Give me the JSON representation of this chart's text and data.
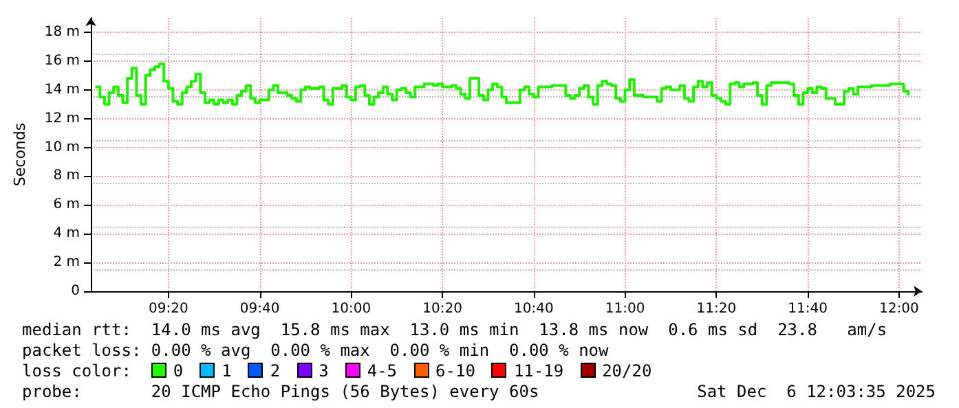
{
  "chart_data": {
    "type": "step",
    "ylabel": "Seconds",
    "grid": true,
    "marker": "none",
    "xlim": [
      "2025-12-06T09:03",
      "2025-12-06T12:05"
    ],
    "xticks": [
      {
        "value": "2025-12-06T09:20",
        "label": "09:20"
      },
      {
        "value": "2025-12-06T09:40",
        "label": "09:40"
      },
      {
        "value": "2025-12-06T10:00",
        "label": "10:00"
      },
      {
        "value": "2025-12-06T10:20",
        "label": "10:20"
      },
      {
        "value": "2025-12-06T10:40",
        "label": "10:40"
      },
      {
        "value": "2025-12-06T11:00",
        "label": "11:00"
      },
      {
        "value": "2025-12-06T11:20",
        "label": "11:20"
      },
      {
        "value": "2025-12-06T11:40",
        "label": "11:40"
      },
      {
        "value": "2025-12-06T12:00",
        "label": "12:00"
      }
    ],
    "ylim": [
      0,
      19
    ],
    "yticks": [
      0,
      {
        "value": 2,
        "label": "2 m"
      },
      {
        "value": 4,
        "label": "4 m"
      },
      {
        "value": 6,
        "label": "6 m"
      },
      {
        "value": 8,
        "label": "8 m"
      },
      {
        "value": 10,
        "label": "10 m"
      },
      {
        "value": 12,
        "label": "12 m"
      },
      {
        "value": 14,
        "label": "14 m"
      },
      {
        "value": 16,
        "label": "16 m"
      },
      {
        "value": 18,
        "label": "18 m"
      }
    ],
    "x": [
      "2025-12-06T09:04",
      "2025-12-06T09:05",
      "2025-12-06T09:06",
      "2025-12-06T09:07",
      "2025-12-06T09:08",
      "2025-12-06T09:09",
      "2025-12-06T09:10",
      "2025-12-06T09:11",
      "2025-12-06T09:12",
      "2025-12-06T09:13",
      "2025-12-06T09:14",
      "2025-12-06T09:15",
      "2025-12-06T09:16",
      "2025-12-06T09:17",
      "2025-12-06T09:18",
      "2025-12-06T09:19",
      "2025-12-06T09:20",
      "2025-12-06T09:21",
      "2025-12-06T09:22",
      "2025-12-06T09:23",
      "2025-12-06T09:24",
      "2025-12-06T09:25",
      "2025-12-06T09:26",
      "2025-12-06T09:27",
      "2025-12-06T09:28",
      "2025-12-06T09:29",
      "2025-12-06T09:30",
      "2025-12-06T09:31",
      "2025-12-06T09:32",
      "2025-12-06T09:33",
      "2025-12-06T09:34",
      "2025-12-06T09:35",
      "2025-12-06T09:36",
      "2025-12-06T09:37",
      "2025-12-06T09:38",
      "2025-12-06T09:39",
      "2025-12-06T09:40",
      "2025-12-06T09:42",
      "2025-12-06T09:43",
      "2025-12-06T09:44",
      "2025-12-06T09:46",
      "2025-12-06T09:47",
      "2025-12-06T09:48",
      "2025-12-06T09:49",
      "2025-12-06T09:50",
      "2025-12-06T09:51",
      "2025-12-06T09:53",
      "2025-12-06T09:54",
      "2025-12-06T09:55",
      "2025-12-06T09:56",
      "2025-12-06T09:58",
      "2025-12-06T09:59",
      "2025-12-06T10:00",
      "2025-12-06T10:01",
      "2025-12-06T10:02",
      "2025-12-06T10:03",
      "2025-12-06T10:04",
      "2025-12-06T10:05",
      "2025-12-06T10:06",
      "2025-12-06T10:07",
      "2025-12-06T10:08",
      "2025-12-06T10:09",
      "2025-12-06T10:10",
      "2025-12-06T10:11",
      "2025-12-06T10:12",
      "2025-12-06T10:13",
      "2025-12-06T10:14",
      "2025-12-06T10:16",
      "2025-12-06T10:18",
      "2025-12-06T10:19",
      "2025-12-06T10:20",
      "2025-12-06T10:22",
      "2025-12-06T10:23",
      "2025-12-06T10:24",
      "2025-12-06T10:25",
      "2025-12-06T10:26",
      "2025-12-06T10:28",
      "2025-12-06T10:29",
      "2025-12-06T10:30",
      "2025-12-06T10:31",
      "2025-12-06T10:32",
      "2025-12-06T10:33",
      "2025-12-06T10:34",
      "2025-12-06T10:36",
      "2025-12-06T10:37",
      "2025-12-06T10:38",
      "2025-12-06T10:39",
      "2025-12-06T10:40",
      "2025-12-06T10:41",
      "2025-12-06T10:44",
      "2025-12-06T10:46",
      "2025-12-06T10:47",
      "2025-12-06T10:48",
      "2025-12-06T10:49",
      "2025-12-06T10:50",
      "2025-12-06T10:51",
      "2025-12-06T10:52",
      "2025-12-06T10:53",
      "2025-12-06T10:54",
      "2025-12-06T10:55",
      "2025-12-06T10:56",
      "2025-12-06T10:57",
      "2025-12-06T10:58",
      "2025-12-06T10:59",
      "2025-12-06T11:00",
      "2025-12-06T11:01",
      "2025-12-06T11:02",
      "2025-12-06T11:04",
      "2025-12-06T11:06",
      "2025-12-06T11:07",
      "2025-12-06T11:08",
      "2025-12-06T11:09",
      "2025-12-06T11:10",
      "2025-12-06T11:12",
      "2025-12-06T11:13",
      "2025-12-06T11:14",
      "2025-12-06T11:15",
      "2025-12-06T11:16",
      "2025-12-06T11:17",
      "2025-12-06T11:18",
      "2025-12-06T11:19",
      "2025-12-06T11:20",
      "2025-12-06T11:21",
      "2025-12-06T11:22",
      "2025-12-06T11:23",
      "2025-12-06T11:24",
      "2025-12-06T11:25",
      "2025-12-06T11:26",
      "2025-12-06T11:28",
      "2025-12-06T11:29",
      "2025-12-06T11:30",
      "2025-12-06T11:31",
      "2025-12-06T11:32",
      "2025-12-06T11:34",
      "2025-12-06T11:36",
      "2025-12-06T11:37",
      "2025-12-06T11:38",
      "2025-12-06T11:39",
      "2025-12-06T11:40",
      "2025-12-06T11:41",
      "2025-12-06T11:42",
      "2025-12-06T11:43",
      "2025-12-06T11:44",
      "2025-12-06T11:46",
      "2025-12-06T11:48",
      "2025-12-06T11:49",
      "2025-12-06T11:50",
      "2025-12-06T11:51",
      "2025-12-06T11:54",
      "2025-12-06T11:56",
      "2025-12-06T11:58",
      "2025-12-06T12:01",
      "2025-12-06T12:02"
    ],
    "series": [
      {
        "color": "#22ee00",
        "values": [
          14.2,
          13.5,
          13.0,
          13.8,
          14.2,
          13.6,
          13.1,
          14.8,
          15.5,
          13.6,
          13.0,
          15.0,
          15.4,
          15.6,
          15.8,
          14.6,
          14.1,
          13.2,
          13.0,
          13.8,
          14.2,
          14.6,
          15.1,
          13.8,
          13.1,
          13.3,
          13.0,
          13.3,
          13.1,
          13.3,
          13.0,
          13.6,
          13.9,
          14.3,
          13.4,
          13.1,
          13.3,
          14.0,
          14.3,
          13.8,
          13.6,
          13.4,
          13.2,
          14.0,
          14.2,
          14.1,
          14.2,
          13.3,
          13.0,
          14.1,
          14.3,
          13.5,
          13.3,
          14.2,
          14.3,
          13.6,
          13.0,
          13.5,
          13.8,
          14.2,
          13.7,
          13.3,
          14.0,
          14.1,
          13.8,
          13.5,
          14.2,
          14.4,
          14.3,
          14.4,
          14.2,
          14.3,
          14.1,
          13.7,
          13.4,
          14.8,
          13.6,
          13.3,
          14.0,
          14.4,
          14.2,
          13.5,
          13.1,
          13.1,
          14.0,
          14.2,
          13.7,
          13.5,
          14.2,
          14.3,
          14.3,
          13.6,
          13.4,
          13.6,
          14.1,
          14.3,
          13.5,
          13.0,
          14.3,
          14.6,
          14.4,
          14.3,
          13.4,
          13.2,
          14.0,
          14.7,
          13.6,
          13.5,
          13.5,
          13.2,
          14.1,
          14.2,
          14.0,
          14.3,
          13.4,
          13.2,
          14.2,
          14.6,
          14.2,
          14.5,
          13.6,
          13.4,
          13.2,
          13.0,
          14.4,
          14.5,
          14.2,
          14.4,
          14.5,
          13.6,
          13.0,
          14.3,
          14.5,
          14.5,
          14.4,
          13.6,
          13.0,
          13.8,
          14.1,
          13.8,
          14.2,
          14.1,
          13.4,
          13.0,
          13.9,
          14.1,
          13.7,
          14.2,
          14.3,
          14.3,
          14.4,
          13.9,
          13.6
        ]
      }
    ],
    "annotations": [
      "median rtt:  14.0 ms avg  15.8 ms max  13.0 ms min  13.8 ms now  0.6 ms sd  23.8   am/s",
      "packet loss: 0.00 % avg  0.00 % max  0.00 % min  0.00 % now",
      "loss color:",
      "0",
      "1",
      "2",
      "3",
      "4-5",
      "6-10",
      "11-19",
      "20/20",
      "probe:",
      "20 ICMP Echo Pings (56 Bytes) every 60s",
      "Sat Dec  6 12:03:35 2025"
    ]
  }
}
